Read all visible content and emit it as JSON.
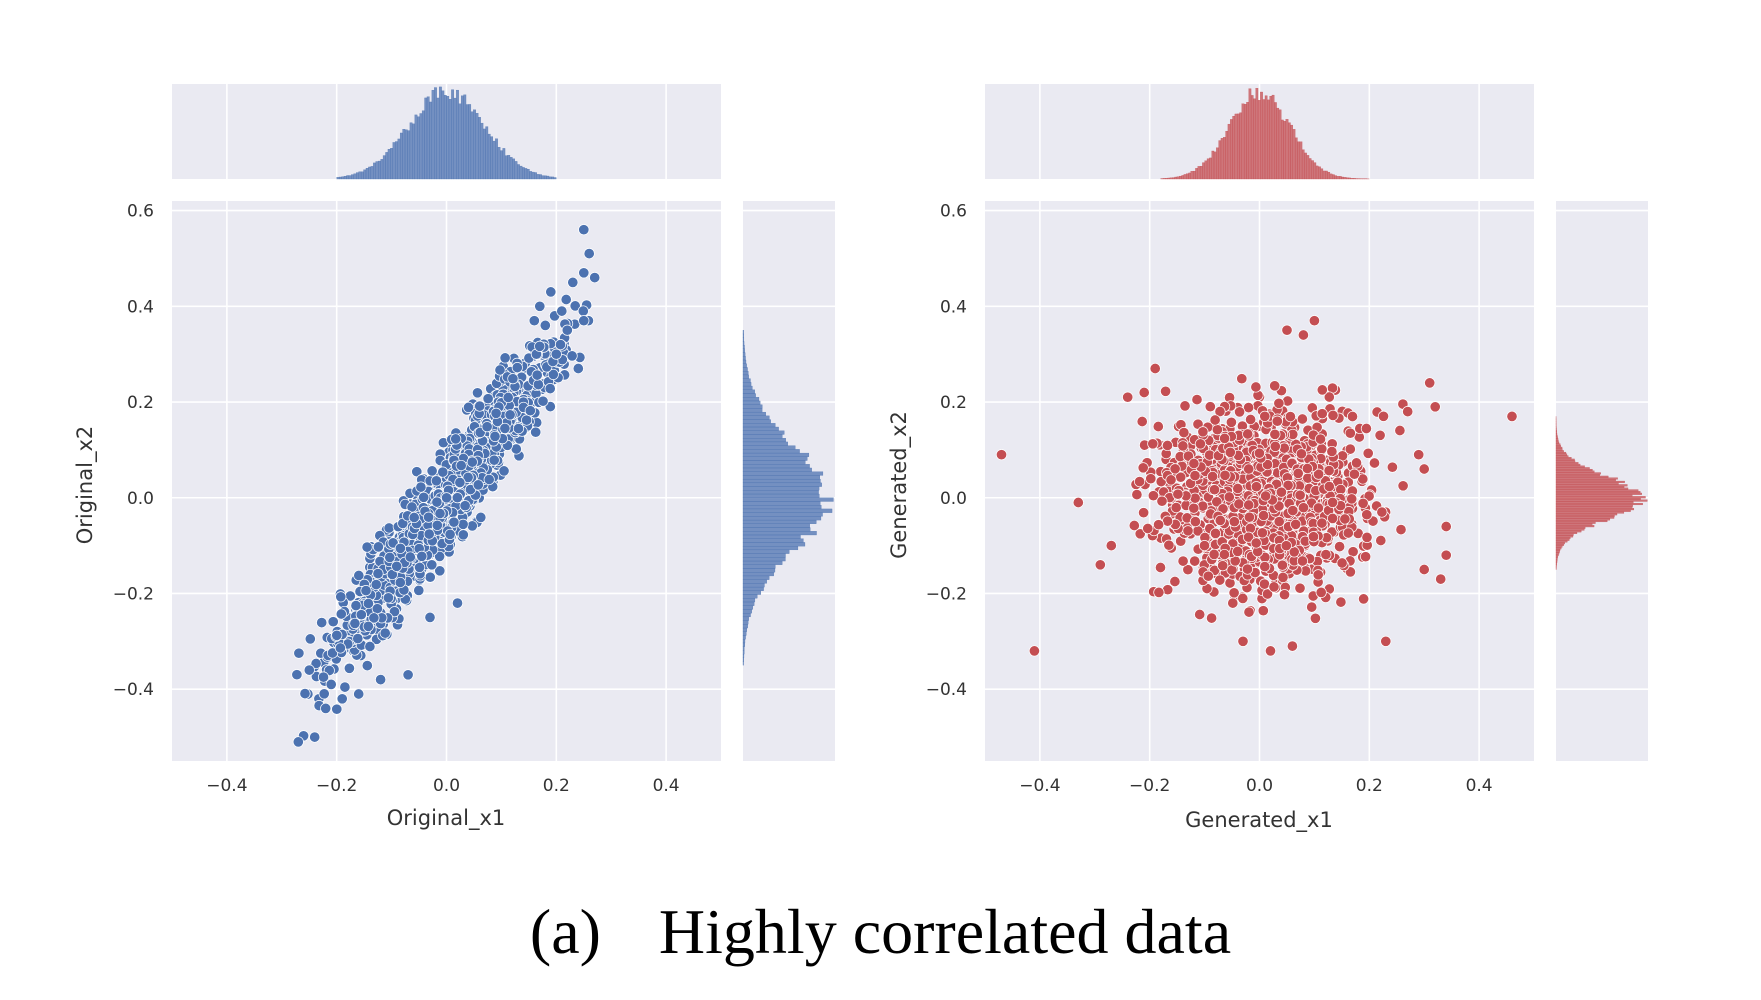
{
  "caption": {
    "label": "(a)",
    "text": "Highly correlated data"
  },
  "colors": {
    "background": "#eaeaf2",
    "grid": "#ffffff",
    "tick_text": "#333333",
    "original": "#4c72b0",
    "generated": "#c44e52"
  },
  "chart_data": [
    {
      "type": "scatter",
      "name": "original",
      "title": "",
      "xlabel": "Original_x1",
      "ylabel": "Original_x2",
      "xlim": [
        -0.5,
        0.5
      ],
      "ylim": [
        -0.55,
        0.62
      ],
      "xticks": [
        -0.4,
        -0.2,
        0.0,
        0.2,
        0.4
      ],
      "xtick_labels": [
        "−0.4",
        "−0.2",
        "0.0",
        "0.2",
        "0.4"
      ],
      "yticks": [
        -0.4,
        -0.2,
        0.0,
        0.2,
        0.4,
        0.6
      ],
      "ytick_labels": [
        "−0.4",
        "−0.2",
        "0.0",
        "0.2",
        "0.4",
        "0.6"
      ],
      "grid": true,
      "color": "#4c72b0",
      "distribution": {
        "mean_x": 0.0,
        "mean_y": 0.0,
        "sd_x": 0.1,
        "sd_y": 0.16,
        "correlation": 0.95,
        "n": 1500
      },
      "points": [
        [
          0.25,
          0.56
        ],
        [
          0.26,
          0.51
        ],
        [
          0.27,
          0.46
        ],
        [
          0.25,
          0.47
        ],
        [
          0.23,
          0.45
        ],
        [
          0.25,
          0.37
        ],
        [
          0.22,
          0.35
        ],
        [
          0.24,
          0.27
        ],
        [
          0.2,
          0.3
        ],
        [
          0.18,
          0.36
        ],
        [
          0.16,
          0.37
        ],
        [
          0.02,
          -0.22
        ],
        [
          -0.27,
          -0.51
        ],
        [
          -0.24,
          -0.5
        ],
        [
          -0.25,
          -0.36
        ],
        [
          -0.22,
          -0.44
        ],
        [
          -0.21,
          -0.39
        ],
        [
          -0.19,
          -0.42
        ],
        [
          -0.16,
          -0.41
        ],
        [
          -0.12,
          -0.38
        ],
        [
          -0.07,
          -0.37
        ],
        [
          -0.03,
          -0.25
        ],
        [
          0.17,
          0.4
        ],
        [
          0.19,
          0.43
        ],
        [
          0.21,
          0.39
        ]
      ],
      "marginal_x": {
        "range": [
          -0.2,
          0.2
        ],
        "peak": 0.0,
        "sd": 0.07
      },
      "marginal_y": {
        "range": [
          -0.35,
          0.35
        ],
        "peak": 0.0,
        "sd": 0.11
      }
    },
    {
      "type": "scatter",
      "name": "generated",
      "title": "",
      "xlabel": "Generated_x1",
      "ylabel": "Generated_x2",
      "xlim": [
        -0.5,
        0.5
      ],
      "ylim": [
        -0.55,
        0.62
      ],
      "xticks": [
        -0.4,
        -0.2,
        0.0,
        0.2,
        0.4
      ],
      "xtick_labels": [
        "−0.4",
        "−0.2",
        "0.0",
        "0.2",
        "0.4"
      ],
      "yticks": [
        -0.4,
        -0.2,
        0.0,
        0.2,
        0.4,
        0.6
      ],
      "ytick_labels": [
        "−0.4",
        "−0.2",
        "0.0",
        "0.2",
        "0.4",
        "0.6"
      ],
      "grid": true,
      "color": "#c44e52",
      "distribution": {
        "mean_x": 0.01,
        "mean_y": 0.0,
        "sd_x": 0.09,
        "sd_y": 0.09,
        "correlation": 0.0,
        "n": 1500
      },
      "points": [
        [
          -0.47,
          0.09
        ],
        [
          -0.41,
          -0.32
        ],
        [
          0.46,
          0.17
        ],
        [
          -0.33,
          -0.01
        ],
        [
          -0.29,
          -0.14
        ],
        [
          -0.24,
          0.21
        ],
        [
          -0.21,
          0.22
        ],
        [
          -0.19,
          0.27
        ],
        [
          0.05,
          0.35
        ],
        [
          0.1,
          0.37
        ],
        [
          0.08,
          0.34
        ],
        [
          0.31,
          0.24
        ],
        [
          0.32,
          0.19
        ],
        [
          0.34,
          -0.06
        ],
        [
          0.34,
          -0.12
        ],
        [
          0.33,
          -0.17
        ],
        [
          0.3,
          -0.15
        ],
        [
          0.23,
          -0.3
        ],
        [
          0.02,
          -0.32
        ],
        [
          0.06,
          -0.31
        ],
        [
          -0.03,
          -0.3
        ],
        [
          0.29,
          0.09
        ],
        [
          0.3,
          0.06
        ],
        [
          -0.27,
          -0.1
        ],
        [
          0.27,
          0.18
        ]
      ],
      "marginal_x": {
        "range": [
          -0.18,
          0.2
        ],
        "peak": 0.0,
        "sd": 0.055
      },
      "marginal_y": {
        "range": [
          -0.15,
          0.17
        ],
        "peak": 0.0,
        "sd": 0.045
      }
    }
  ]
}
